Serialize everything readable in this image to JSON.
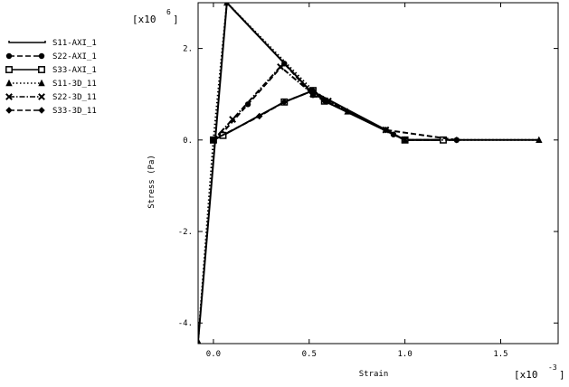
{
  "chart_data": {
    "type": "line",
    "xlabel": "Strain",
    "ylabel": "Stress (Pa)",
    "x_multiplier": "[x10",
    "x_multiplier_exp": "-3",
    "x_multiplier_close": "]",
    "y_multiplier": "[x10",
    "y_multiplier_exp": "6",
    "y_multiplier_close": "]",
    "xlim": [
      -0.08,
      1.8
    ],
    "ylim": [
      -4.45,
      3.0
    ],
    "xticks": [
      0.0,
      0.5,
      1.0,
      1.5
    ],
    "xtick_labels": [
      "0.0",
      "0.5",
      "1.0",
      "1.5"
    ],
    "yticks": [
      -4,
      -2,
      0,
      2
    ],
    "ytick_labels": [
      "-4.",
      "-2.",
      "0.",
      "2."
    ],
    "grid": false,
    "legend_position": "left-top",
    "series": [
      {
        "name": "S11-AXI_1",
        "marker": "none",
        "dash": "solid",
        "x": [
          -0.08,
          0.07,
          0.5,
          1.0,
          1.7
        ],
        "y": [
          -4.4,
          3.0,
          1.1,
          0.0,
          0.0
        ]
      },
      {
        "name": "S22-AXI_1",
        "marker": "circle",
        "dash": "dashed",
        "x": [
          0.0,
          0.04,
          0.18,
          0.37,
          0.52,
          0.9,
          0.94,
          1.0,
          1.27
        ],
        "y": [
          0.0,
          0.12,
          0.78,
          1.67,
          0.98,
          0.22,
          0.12,
          0.0,
          0.0
        ]
      },
      {
        "name": "S33-AXI_1",
        "marker": "square",
        "dash": "solid",
        "x": [
          0.0,
          0.05,
          0.37,
          0.52,
          0.58,
          1.0,
          1.2
        ],
        "y": [
          0.0,
          0.1,
          0.83,
          1.08,
          0.85,
          0.0,
          0.0
        ]
      },
      {
        "name": "S11-3D_11",
        "marker": "triangle",
        "dash": "dotted",
        "x": [
          -0.08,
          0.0,
          0.07,
          0.52,
          0.7,
          1.0,
          1.7
        ],
        "y": [
          -4.4,
          0.0,
          3.0,
          1.08,
          0.62,
          0.0,
          0.0
        ]
      },
      {
        "name": "S22-3D_11",
        "marker": "cross",
        "dash": "dashdot",
        "x": [
          0.0,
          0.1,
          0.35,
          0.52,
          0.6,
          0.9,
          1.0
        ],
        "y": [
          0.0,
          0.45,
          1.6,
          1.0,
          0.85,
          0.22,
          0.0
        ]
      },
      {
        "name": "S33-3D_11",
        "marker": "diamond",
        "dash": "dashed",
        "x": [
          0.0,
          0.24,
          0.37,
          0.52,
          0.58,
          0.9,
          1.27
        ],
        "y": [
          0.0,
          0.52,
          0.83,
          1.08,
          0.85,
          0.22,
          0.0
        ]
      }
    ]
  }
}
